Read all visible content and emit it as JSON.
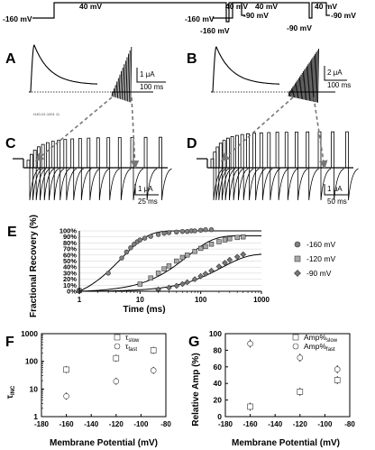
{
  "panel_labels": [
    "A",
    "B",
    "C",
    "D",
    "E",
    "F",
    "G"
  ],
  "protocol_left": {
    "hold": "-160 mV",
    "step": "40 mV",
    "recovery": "-160 mV",
    "test": "40 mV",
    "end": "-90 mV"
  },
  "protocol_right": {
    "hold": "-160 mV",
    "step": "40 mV",
    "recovery": "-90 mV",
    "test": "40 mV",
    "end": "-90 mV"
  },
  "scale_bars": {
    "A": {
      "current": "1 μA",
      "time": "100 ms"
    },
    "B": {
      "current": "2 μA",
      "time": "100 ms"
    },
    "C": {
      "current": "1 μA",
      "time": "25 ms"
    },
    "D": {
      "current": "1 μA",
      "time": "50 ms"
    }
  },
  "file_label": "t140-01-1001 11",
  "colors": {
    "trace": "#000000",
    "m160": "#808080",
    "m120": "#aaaaaa",
    "m90": "#777777",
    "arrow": "#777777"
  },
  "chart_data": [
    {
      "type": "scatter",
      "panel": "E",
      "xlabel": "Time (ms)",
      "ylabel": "Fractional Recovery (%)",
      "x_scale": "log",
      "xlim": [
        1,
        1000
      ],
      "ylim": [
        0,
        100
      ],
      "x_ticks": [
        "1",
        "10",
        "100",
        "1000"
      ],
      "y_ticks": [
        "0%",
        "10%",
        "20%",
        "30%",
        "40%",
        "50%",
        "60%",
        "70%",
        "80%",
        "90%",
        "100%"
      ],
      "legend_position": "right",
      "series": [
        {
          "name": "-160 mV",
          "marker": "circle",
          "x": [
            1,
            3,
            5,
            6,
            7,
            8,
            9,
            10,
            12,
            15,
            20,
            25,
            30,
            40,
            50,
            60,
            70,
            80,
            100,
            120,
            150
          ],
          "y": [
            2,
            30,
            55,
            65,
            72,
            78,
            82,
            85,
            88,
            91,
            94,
            96,
            97,
            98,
            99,
            99,
            100,
            100,
            101,
            102,
            102
          ]
        },
        {
          "name": "-120 mV",
          "marker": "square",
          "x": [
            1,
            10,
            15,
            20,
            25,
            30,
            40,
            50,
            60,
            80,
            100,
            120,
            150,
            200,
            250,
            300,
            400,
            500
          ],
          "y": [
            1,
            12,
            22,
            30,
            37,
            42,
            50,
            56,
            60,
            66,
            71,
            74,
            78,
            82,
            85,
            87,
            89,
            90
          ]
        },
        {
          "name": "-90 mV",
          "marker": "diamond",
          "x": [
            1,
            20,
            30,
            40,
            50,
            60,
            80,
            100,
            120,
            150,
            200,
            250,
            300,
            400,
            500
          ],
          "y": [
            0,
            3,
            6,
            9,
            12,
            15,
            20,
            25,
            29,
            34,
            41,
            47,
            52,
            57,
            61
          ]
        }
      ]
    },
    {
      "type": "scatter",
      "panel": "F",
      "xlabel": "Membrane Potential (mV)",
      "ylabel": "τ_INC",
      "y_scale": "log",
      "xlim": [
        -180,
        -80
      ],
      "ylim": [
        1,
        1000
      ],
      "x_ticks": [
        "-180",
        "-160",
        "-140",
        "-120",
        "-100",
        "-80"
      ],
      "y_ticks": [
        "1",
        "10",
        "100",
        "1000"
      ],
      "legend_position": "top-right",
      "series": [
        {
          "name": "τslow",
          "marker": "square",
          "x": [
            -160,
            -120,
            -90
          ],
          "y": [
            50,
            130,
            250
          ]
        },
        {
          "name": "τfast",
          "marker": "circle",
          "x": [
            -160,
            -120,
            -90
          ],
          "y": [
            5.5,
            19,
            47
          ]
        }
      ]
    },
    {
      "type": "scatter",
      "panel": "G",
      "xlabel": "Membrane Potential (mV)",
      "ylabel": "Relative Amp (%)",
      "xlim": [
        -180,
        -80
      ],
      "ylim": [
        0,
        100
      ],
      "x_ticks": [
        "-180",
        "-160",
        "-140",
        "-120",
        "-100",
        "-80"
      ],
      "y_ticks": [
        "0",
        "20",
        "40",
        "60",
        "80",
        "100"
      ],
      "legend_position": "top-right",
      "series": [
        {
          "name": "Amp%slow",
          "marker": "square",
          "x": [
            -160,
            -120,
            -90
          ],
          "y": [
            12,
            30,
            44
          ]
        },
        {
          "name": "Amp%fast",
          "marker": "circle",
          "x": [
            -160,
            -120,
            -90
          ],
          "y": [
            88,
            71,
            57
          ]
        }
      ]
    }
  ]
}
